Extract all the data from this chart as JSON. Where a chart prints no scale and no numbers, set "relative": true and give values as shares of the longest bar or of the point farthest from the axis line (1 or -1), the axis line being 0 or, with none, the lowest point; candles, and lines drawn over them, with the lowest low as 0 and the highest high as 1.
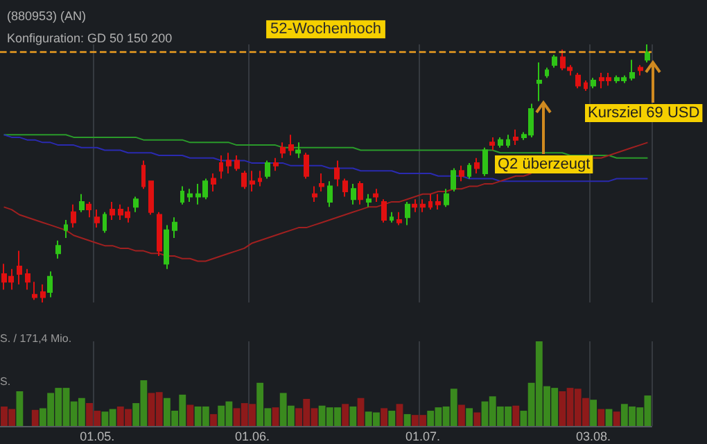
{
  "chart_data": [
    {
      "type": "candlestick",
      "title": "(880953) (AN)",
      "subtitle": "Konfiguration: GD 50 150 200",
      "relative": true,
      "grid": "x",
      "tick_labels": false,
      "categories": [
        null,
        null,
        null,
        null,
        null,
        null,
        null,
        null,
        null,
        null,
        null,
        null,
        "01.05.",
        null,
        null,
        null,
        null,
        null,
        null,
        null,
        null,
        null,
        null,
        null,
        null,
        null,
        null,
        null,
        null,
        null,
        null,
        null,
        "01.06.",
        null,
        null,
        null,
        null,
        null,
        null,
        null,
        null,
        null,
        null,
        null,
        null,
        null,
        null,
        null,
        null,
        null,
        null,
        null,
        null,
        null,
        "01.07.",
        null,
        null,
        null,
        null,
        null,
        null,
        null,
        null,
        null,
        null,
        null,
        null,
        null,
        null,
        null,
        null,
        null,
        null,
        null,
        null,
        null,
        "03.08.",
        null,
        null,
        null,
        null,
        null,
        null,
        null
      ],
      "ohlc": [
        [
          0.11,
          0.15,
          0.05,
          0.08
        ],
        [
          0.1,
          0.13,
          0.05,
          0.08
        ],
        [
          0.14,
          0.2,
          0.07,
          0.11
        ],
        [
          0.11,
          0.13,
          0.05,
          0.08
        ],
        [
          0.03,
          0.08,
          0.01,
          0.02
        ],
        [
          0.04,
          0.07,
          0,
          0.02
        ],
        [
          0.04,
          0.12,
          0.02,
          0.1
        ],
        [
          0.19,
          0.24,
          0.17,
          0.22
        ],
        [
          0.28,
          0.32,
          0.25,
          0.3
        ],
        [
          0.35,
          0.38,
          0.29,
          0.31
        ],
        [
          0.36,
          0.42,
          0.35,
          0.39
        ],
        [
          0.38,
          0.39,
          0.33,
          0.36
        ],
        [
          0.33,
          0.36,
          0.29,
          0.31
        ],
        [
          0.28,
          0.35,
          0.27,
          0.34
        ],
        [
          0.36,
          0.39,
          0.32,
          0.34
        ],
        [
          0.36,
          0.38,
          0.32,
          0.34
        ],
        [
          0.35,
          0.37,
          0.31,
          0.33
        ],
        [
          0.37,
          0.41,
          0.35,
          0.4
        ],
        [
          0.53,
          0.55,
          0.44,
          0.45
        ],
        [
          0.47,
          0.47,
          0.34,
          0.35
        ],
        [
          0.34,
          0.35,
          0.18,
          0.2
        ],
        [
          0.15,
          0.3,
          0.13,
          0.28
        ],
        [
          0.28,
          0.33,
          0.25,
          0.31
        ],
        [
          0.39,
          0.45,
          0.38,
          0.43
        ],
        [
          0.41,
          0.44,
          0.39,
          0.42
        ],
        [
          0.41,
          0.46,
          0.38,
          0.42
        ],
        [
          0.41,
          0.48,
          0.4,
          0.47
        ],
        [
          0.48,
          0.5,
          0.43,
          0.46
        ],
        [
          0.54,
          0.57,
          0.48,
          0.51
        ],
        [
          0.55,
          0.58,
          0.5,
          0.53
        ],
        [
          0.55,
          0.57,
          0.51,
          0.52
        ],
        [
          0.5,
          0.51,
          0.44,
          0.45
        ],
        [
          0.47,
          0.51,
          0.43,
          0.46
        ],
        [
          0.48,
          0.51,
          0.45,
          0.47
        ],
        [
          0.49,
          0.55,
          0.48,
          0.54
        ],
        [
          0.54,
          0.56,
          0.51,
          0.53
        ],
        [
          0.6,
          0.62,
          0.56,
          0.58
        ],
        [
          0.61,
          0.65,
          0.57,
          0.59
        ],
        [
          0.58,
          0.62,
          0.56,
          0.59
        ],
        [
          0.57,
          0.58,
          0.48,
          0.49
        ],
        [
          0.42,
          0.45,
          0.39,
          0.41
        ],
        [
          0.46,
          0.5,
          0.43,
          0.45
        ],
        [
          0.39,
          0.47,
          0.37,
          0.45
        ],
        [
          0.52,
          0.55,
          0.45,
          0.48
        ],
        [
          0.47,
          0.48,
          0.41,
          0.43
        ],
        [
          0.4,
          0.46,
          0.38,
          0.44
        ],
        [
          0.46,
          0.47,
          0.38,
          0.4
        ],
        [
          0.39,
          0.42,
          0.37,
          0.4
        ],
        [
          0.42,
          0.44,
          0.39,
          0.41
        ],
        [
          0.39,
          0.4,
          0.31,
          0.32
        ],
        [
          0.32,
          0.35,
          0.31,
          0.33
        ],
        [
          0.32,
          0.35,
          0.3,
          0.31
        ],
        [
          0.33,
          0.39,
          0.3,
          0.38
        ],
        [
          0.38,
          0.4,
          0.35,
          0.37
        ],
        [
          0.38,
          0.4,
          0.35,
          0.37
        ],
        [
          0.39,
          0.42,
          0.36,
          0.37
        ],
        [
          0.39,
          0.42,
          0.36,
          0.38
        ],
        [
          0.38,
          0.44,
          0.37,
          0.42
        ],
        [
          0.44,
          0.52,
          0.43,
          0.51
        ],
        [
          0.51,
          0.53,
          0.47,
          0.49
        ],
        [
          0.49,
          0.54,
          0.48,
          0.53
        ],
        [
          0.54,
          0.56,
          0.5,
          0.52
        ],
        [
          0.5,
          0.6,
          0.49,
          0.59
        ],
        [
          0.62,
          0.64,
          0.59,
          0.61
        ],
        [
          0.61,
          0.64,
          0.6,
          0.63
        ],
        [
          0.61,
          0.65,
          0.6,
          0.63
        ],
        [
          0.64,
          0.67,
          0.61,
          0.63
        ],
        [
          0.64,
          0.66,
          0.63,
          0.65
        ],
        [
          0.65,
          0.77,
          0.64,
          0.75
        ],
        [
          0.85,
          0.93,
          0.78,
          0.86
        ],
        [
          0.88,
          0.91,
          0.87,
          0.9
        ],
        [
          0.92,
          0.96,
          0.91,
          0.95
        ],
        [
          0.95,
          0.98,
          0.9,
          0.91
        ],
        [
          0.91,
          0.92,
          0.88,
          0.9
        ],
        [
          0.88,
          0.89,
          0.83,
          0.84
        ],
        [
          0.85,
          0.86,
          0.82,
          0.83
        ],
        [
          0.84,
          0.87,
          0.83,
          0.86
        ],
        [
          0.87,
          0.89,
          0.83,
          0.86
        ],
        [
          0.87,
          0.89,
          0.84,
          0.86
        ],
        [
          0.86,
          0.88,
          0.85,
          0.87
        ],
        [
          0.86,
          0.88,
          0.85,
          0.87
        ],
        [
          0.87,
          0.94,
          0.86,
          0.89
        ],
        [
          0.91,
          0.92,
          0.88,
          0.9
        ],
        [
          0.94,
          1,
          0.93,
          0.97
        ]
      ],
      "series": [
        {
          "type": "line",
          "color": "#2a9a2a",
          "values": [
            0.65,
            0.65,
            0.65,
            0.65,
            0.65,
            0.65,
            0.65,
            0.65,
            0.65,
            0.64,
            0.64,
            0.64,
            0.64,
            0.64,
            0.64,
            0.64,
            0.64,
            0.64,
            0.63,
            0.63,
            0.63,
            0.63,
            0.63,
            0.63,
            0.62,
            0.62,
            0.62,
            0.62,
            0.62,
            0.62,
            0.61,
            0.61,
            0.61,
            0.61,
            0.61,
            0.61,
            0.6,
            0.6,
            0.6,
            0.6,
            0.6,
            0.6,
            0.6,
            0.6,
            0.6,
            0.6,
            0.59,
            0.59,
            0.59,
            0.59,
            0.59,
            0.59,
            0.59,
            0.59,
            0.59,
            0.59,
            0.59,
            0.59,
            0.59,
            0.59,
            0.59,
            0.59,
            0.59,
            0.59,
            0.58,
            0.58,
            0.58,
            0.58,
            0.58,
            0.58,
            0.58,
            0.58,
            0.58,
            0.57,
            0.57,
            0.57,
            0.57,
            0.57,
            0.57,
            0.56,
            0.56,
            0.56,
            0.56,
            0.56
          ]
        },
        {
          "type": "line",
          "color": "#2a2ab0",
          "values": [
            0.65,
            0.64,
            0.64,
            0.63,
            0.63,
            0.62,
            0.62,
            0.61,
            0.61,
            0.61,
            0.6,
            0.6,
            0.6,
            0.59,
            0.59,
            0.59,
            0.58,
            0.58,
            0.58,
            0.58,
            0.57,
            0.57,
            0.57,
            0.57,
            0.56,
            0.56,
            0.56,
            0.56,
            0.55,
            0.55,
            0.55,
            0.55,
            0.54,
            0.54,
            0.54,
            0.54,
            0.54,
            0.53,
            0.53,
            0.53,
            0.53,
            0.53,
            0.52,
            0.52,
            0.52,
            0.52,
            0.51,
            0.51,
            0.51,
            0.51,
            0.51,
            0.5,
            0.5,
            0.5,
            0.5,
            0.5,
            0.49,
            0.49,
            0.49,
            0.49,
            0.48,
            0.48,
            0.48,
            0.48,
            0.47,
            0.47,
            0.47,
            0.47,
            0.47,
            0.47,
            0.47,
            0.47,
            0.47,
            0.47,
            0.47,
            0.47,
            0.47,
            0.47,
            0.47,
            0.48,
            0.48,
            0.48,
            0.48,
            0.48
          ]
        },
        {
          "type": "line",
          "color": "#a02020",
          "values": [
            0.37,
            0.36,
            0.34,
            0.33,
            0.32,
            0.31,
            0.3,
            0.29,
            0.28,
            0.26,
            0.25,
            0.24,
            0.23,
            0.22,
            0.22,
            0.21,
            0.21,
            0.2,
            0.2,
            0.19,
            0.19,
            0.18,
            0.18,
            0.17,
            0.17,
            0.16,
            0.16,
            0.17,
            0.18,
            0.19,
            0.2,
            0.21,
            0.23,
            0.24,
            0.25,
            0.26,
            0.27,
            0.28,
            0.29,
            0.29,
            0.3,
            0.31,
            0.32,
            0.33,
            0.34,
            0.35,
            0.36,
            0.37,
            0.37,
            0.38,
            0.39,
            0.39,
            0.4,
            0.41,
            0.42,
            0.42,
            0.43,
            0.43,
            0.44,
            0.44,
            0.45,
            0.45,
            0.46,
            0.46,
            0.47,
            0.48,
            0.49,
            0.49,
            0.5,
            null,
            null,
            null,
            null,
            null,
            null,
            null,
            0.56,
            0.56,
            0.57,
            0.58,
            0.59,
            0.6,
            0.61,
            0.62
          ]
        }
      ],
      "ref_lines": [
        {
          "axis": "y",
          "value": 0.97,
          "label": "52-Wochenhoch",
          "color": "#f0a020",
          "line_style": "dashed"
        }
      ],
      "annotations": [
        "Q2 überzeugt",
        "Kursziel 69 USD"
      ]
    },
    {
      "type": "bar",
      "relative": true,
      "grid": "x",
      "categories": [
        null,
        null,
        null,
        null,
        null,
        null,
        null,
        null,
        null,
        null,
        null,
        null,
        "01.05.",
        null,
        null,
        null,
        null,
        null,
        null,
        null,
        null,
        null,
        null,
        null,
        null,
        null,
        null,
        null,
        null,
        null,
        null,
        null,
        "01.06.",
        null,
        null,
        null,
        null,
        null,
        null,
        null,
        null,
        null,
        null,
        null,
        null,
        null,
        null,
        null,
        null,
        null,
        null,
        null,
        null,
        null,
        "01.07.",
        null,
        null,
        null,
        null,
        null,
        null,
        null,
        null,
        null,
        null,
        null,
        null,
        null,
        null,
        null,
        null,
        null,
        null,
        null,
        null,
        null,
        "03.08.",
        null,
        null,
        null,
        null,
        null,
        null,
        null
      ],
      "values": [
        0.23,
        0.2,
        0.41,
        null,
        0.19,
        0.21,
        0.39,
        0.45,
        0.45,
        0.29,
        0.33,
        0.27,
        0.18,
        0.17,
        0.2,
        0.23,
        0.2,
        0.27,
        0.54,
        0.39,
        0.4,
        0.33,
        0.18,
        0.37,
        0.25,
        0.23,
        0.23,
        0.14,
        0.24,
        0.29,
        0.21,
        0.27,
        0.26,
        0.51,
        0.21,
        0.22,
        0.39,
        0.24,
        0.21,
        0.32,
        0.21,
        0.24,
        0.22,
        0.22,
        0.26,
        0.23,
        0.33,
        0.17,
        0.16,
        0.21,
        0.18,
        0.26,
        0.14,
        0.13,
        0.13,
        0.18,
        0.22,
        0.23,
        0.44,
        0.25,
        0.21,
        0.16,
        0.29,
        0.35,
        0.23,
        0.23,
        0.24,
        0.18,
        0.51,
        1,
        0.47,
        0.45,
        0.41,
        0.45,
        0.44,
        0.33,
        0.31,
        0.2,
        0.2,
        0.17,
        0.26,
        0.23,
        0.22,
        0.36
      ],
      "colors": [
        "#8e1a1a",
        "#8e1a1a",
        "#3a8a1e",
        "#3a8a1e",
        "#8e1a1a",
        "#3a8a1e",
        "#3a8a1e",
        "#3a8a1e",
        "#3a8a1e",
        "#3a8a1e",
        "#3a8a1e",
        "#8e1a1a",
        "#8e1a1a",
        "#3a8a1e",
        "#3a8a1e",
        "#8e1a1a",
        "#8e1a1a",
        "#3a8a1e",
        "#3a8a1e",
        "#8e1a1a",
        "#8e1a1a",
        "#3a8a1e",
        "#3a8a1e",
        "#3a8a1e",
        "#8e1a1a",
        "#3a8a1e",
        "#3a8a1e",
        "#8e1a1a",
        "#3a8a1e",
        "#3a8a1e",
        "#8e1a1a",
        "#8e1a1a",
        "#8e1a1a",
        "#3a8a1e",
        "#3a8a1e",
        "#8e1a1a",
        "#3a8a1e",
        "#3a8a1e",
        "#8e1a1a",
        "#8e1a1a",
        "#8e1a1a",
        "#3a8a1e",
        "#3a8a1e",
        "#3a8a1e",
        "#8e1a1a",
        "#3a8a1e",
        "#8e1a1a",
        "#3a8a1e",
        "#3a8a1e",
        "#8e1a1a",
        "#3a8a1e",
        "#8e1a1a",
        "#3a8a1e",
        "#8e1a1a",
        "#8e1a1a",
        "#3a8a1e",
        "#3a8a1e",
        "#3a8a1e",
        "#3a8a1e",
        "#8e1a1a",
        "#3a8a1e",
        "#8e1a1a",
        "#3a8a1e",
        "#3a8a1e",
        "#3a8a1e",
        "#3a8a1e",
        "#8e1a1a",
        "#3a8a1e",
        "#3a8a1e",
        "#3a8a1e",
        "#3a8a1e",
        "#3a8a1e",
        "#8e1a1a",
        "#8e1a1a",
        "#8e1a1a",
        "#8e1a1a",
        "#3a8a1e",
        "#8e1a1a",
        "#3a8a1e",
        "#8e1a1a",
        "#3a8a1e",
        "#3a8a1e",
        "#3a8a1e",
        "#3a8a1e"
      ],
      "annotations": [
        "S. / 171,4 Mio.",
        "S."
      ]
    }
  ]
}
